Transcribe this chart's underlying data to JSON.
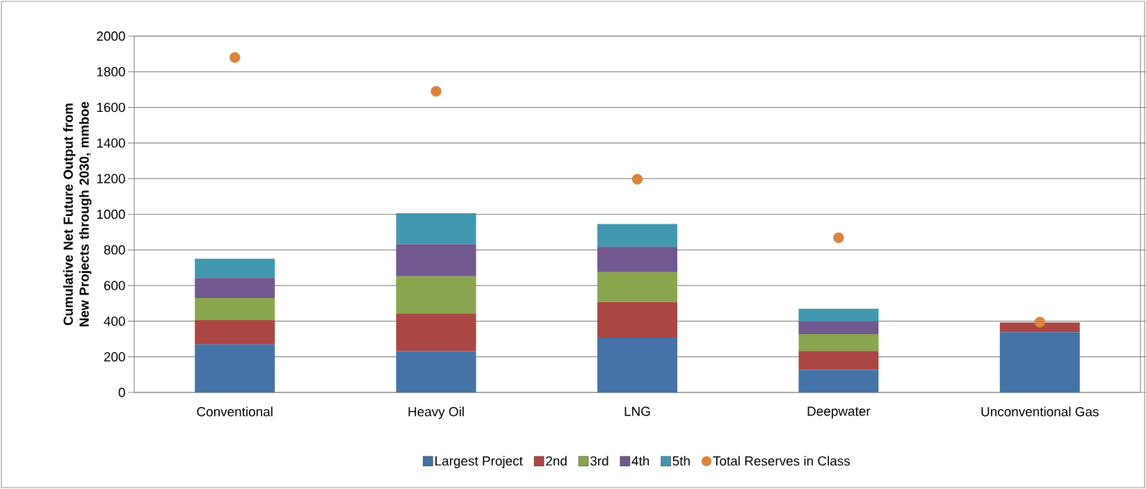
{
  "chart_data": {
    "type": "bar",
    "stacked": true,
    "ylabel": "Cumulative Net Future Output from New Projects through 2030, mmboe",
    "categories": [
      "Conventional",
      "Heavy Oil",
      "LNG",
      "Deepwater",
      "Unconventional Gas"
    ],
    "series": [
      {
        "name": "Largest Project",
        "color": "#4572a7",
        "values": [
          270,
          232,
          308,
          127,
          338
        ]
      },
      {
        "name": "2nd",
        "color": "#aa4643",
        "values": [
          135,
          211,
          200,
          106,
          55
        ]
      },
      {
        "name": "3rd",
        "color": "#89a54e",
        "values": [
          125,
          209,
          167,
          94,
          0
        ]
      },
      {
        "name": "4th",
        "color": "#71588f",
        "values": [
          112,
          180,
          143,
          73,
          0
        ]
      },
      {
        "name": "5th",
        "color": "#4198af",
        "values": [
          108,
          174,
          127,
          70,
          0
        ]
      },
      {
        "name": "Total Reserves in Class",
        "type": "scatter",
        "color": "#db843d",
        "values": [
          1880,
          1690,
          1197,
          868,
          395
        ]
      }
    ],
    "ylim": [
      0,
      2000
    ],
    "yticks": [
      0,
      200,
      400,
      600,
      800,
      1000,
      1200,
      1400,
      1600,
      1800,
      2000
    ],
    "grid": "y",
    "legend": "bottom"
  }
}
